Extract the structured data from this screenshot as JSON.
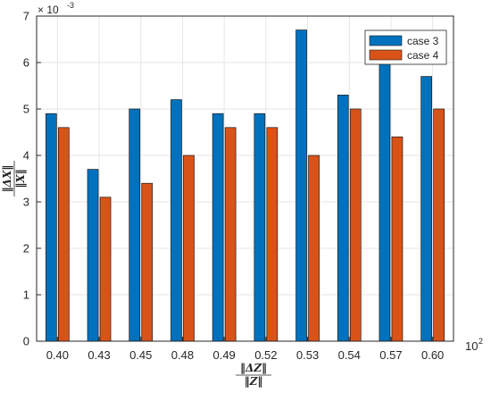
{
  "chart_data": {
    "type": "bar",
    "categories": [
      "0.40",
      "0.43",
      "0.45",
      "0.48",
      "0.49",
      "0.52",
      "0.53",
      "0.54",
      "0.57",
      "0.60"
    ],
    "series": [
      {
        "name": "case 3",
        "color": "#0072BD",
        "values": [
          4.9,
          3.7,
          5.0,
          5.2,
          4.9,
          4.9,
          6.7,
          5.3,
          6.0,
          5.7
        ]
      },
      {
        "name": "case 4",
        "color": "#D95319",
        "values": [
          4.6,
          3.1,
          3.4,
          4.0,
          4.6,
          4.6,
          4.0,
          5.0,
          4.4,
          5.0
        ]
      }
    ],
    "ylim": [
      0,
      7
    ],
    "yticks": [
      "0",
      "1",
      "2",
      "3",
      "4",
      "5",
      "6",
      "7"
    ],
    "y_multiplier": {
      "base": "× 10",
      "exponent": "-3"
    },
    "x_multiplier": {
      "base": "10",
      "exponent": "2"
    },
    "ylabel": {
      "num": "‖ΔX‖",
      "den": "‖X‖"
    },
    "xlabel": {
      "num": "‖ΔZ‖",
      "den": "‖Z‖"
    },
    "grid": true,
    "legend_position": "top-right"
  }
}
